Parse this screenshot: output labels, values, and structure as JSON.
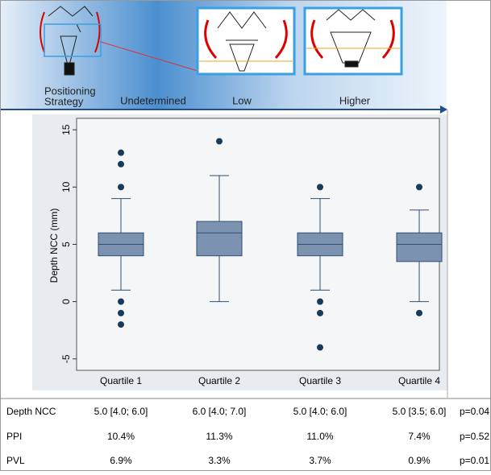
{
  "header": {
    "strategy": [
      "Positioning",
      "Strategy"
    ],
    "stages": [
      "Undetermined",
      "Low",
      "Higher"
    ]
  },
  "chart_data": {
    "type": "box",
    "y_label": "Depth NCC (mm)",
    "categories": [
      "Quartile 1",
      "Quartile 2",
      "Quartile 3",
      "Quartile 4"
    ],
    "whisker_low": [
      1,
      0,
      1,
      0
    ],
    "q1": [
      4,
      4,
      4,
      3.5
    ],
    "median": [
      5,
      6,
      5,
      5
    ],
    "q3": [
      6,
      7,
      6,
      6
    ],
    "whisker_high": [
      9,
      11,
      9,
      8
    ],
    "outliers": [
      [
        13,
        12,
        10,
        0,
        -1,
        -2
      ],
      [
        14
      ],
      [
        10,
        0,
        -1,
        -4
      ],
      [
        10,
        -1
      ]
    ],
    "color": "#7b93b0",
    "ylim": [
      -6,
      16
    ],
    "yticks": [
      -5,
      0,
      5,
      10,
      15
    ]
  },
  "table": {
    "rows": [
      {
        "label": "Depth NCC",
        "cells": [
          "5.0 [4.0; 6.0]",
          "6.0 [4.0; 7.0]",
          "5.0 [4.0; 6.0]",
          "5.0 [3.5; 6.0]"
        ],
        "p": "p=0.04"
      },
      {
        "label": "PPI",
        "cells": [
          "10.4%",
          "11.3%",
          "11.0%",
          "7.4%"
        ],
        "p": "p=0.52"
      },
      {
        "label": "PVL",
        "cells": [
          "6.9%",
          "3.3%",
          "3.7%",
          "0.9%"
        ],
        "p": "p=0.01"
      }
    ]
  }
}
